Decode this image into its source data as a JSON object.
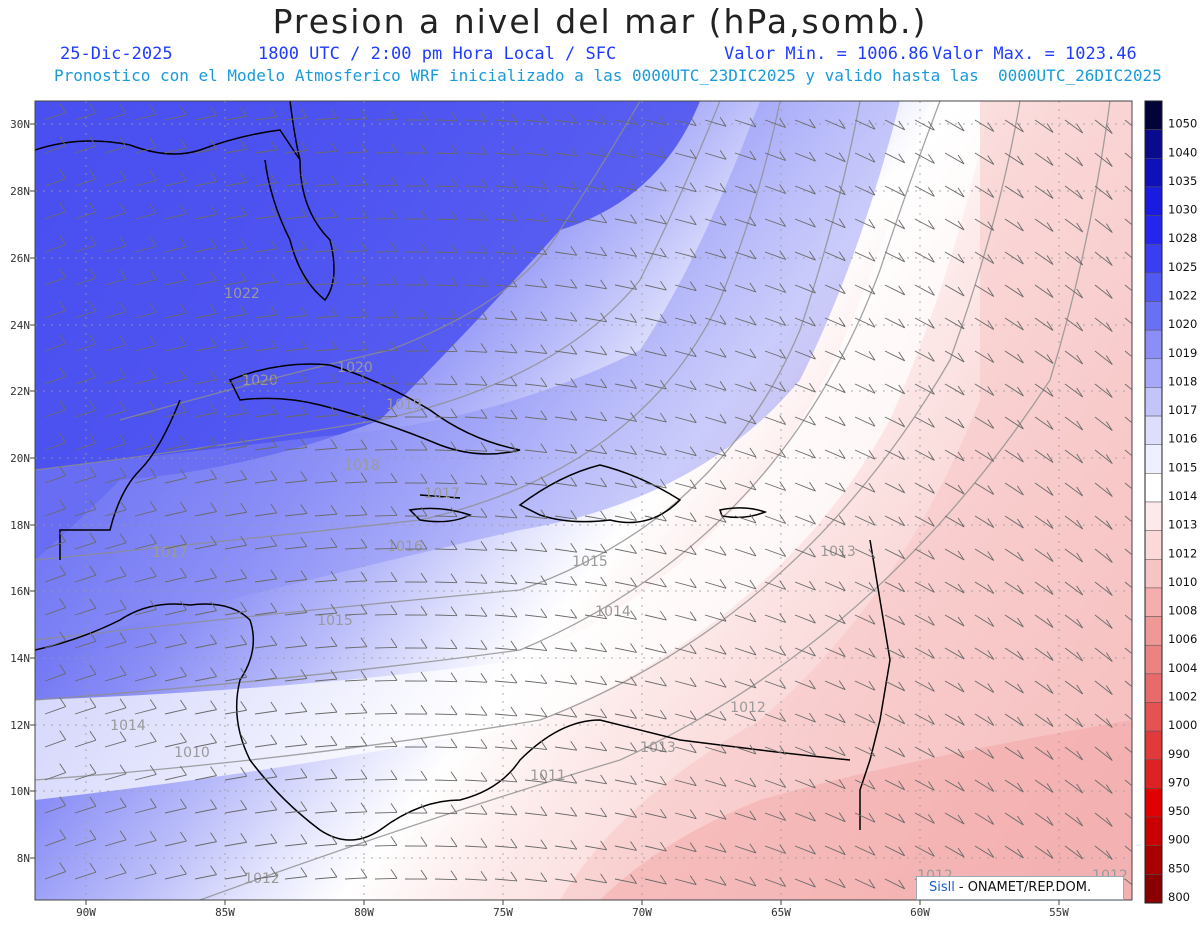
{
  "header": {
    "title": "Presion a nivel del mar (hPa,somb.)",
    "date": "25-Dic-2025",
    "time": "1800 UTC / 2:00 pm Hora Local / SFC",
    "min_label": "Valor Min. = 1006.86",
    "max_label": "Valor Max. = 1023.46",
    "model_info": "Pronostico con el Modelo Atmosferico WRF inicializado a las 0000UTC_23DIC2025 y valido hasta las  0000UTC_26DIC2025"
  },
  "map": {
    "lat_labels": [
      "30N",
      "28N",
      "26N",
      "24N",
      "22N",
      "20N",
      "18N",
      "16N",
      "14N",
      "12N",
      "10N",
      "8N"
    ],
    "lon_labels": [
      "90W",
      "85W",
      "80W",
      "75W",
      "70W",
      "65W",
      "60W",
      "55W"
    ],
    "contour_labels": [
      "1022",
      "1020",
      "1020",
      "1019",
      "1018",
      "1017",
      "1017",
      "1016",
      "1015",
      "1015",
      "1014",
      "1014",
      "1013",
      "1013",
      "1012",
      "1012",
      "1012",
      "1012",
      "1011",
      "1010"
    ]
  },
  "colorbar": {
    "levels": [
      "1050",
      "1040",
      "1035",
      "1030",
      "1028",
      "1025",
      "1022",
      "1020",
      "1019",
      "1018",
      "1017",
      "1016",
      "1015",
      "1014",
      "1013",
      "1012",
      "1010",
      "1008",
      "1006",
      "1004",
      "1002",
      "1000",
      "990",
      "970",
      "950",
      "900",
      "850",
      "800"
    ],
    "colors": [
      "#03033a",
      "#0a0a8c",
      "#1010b8",
      "#1a1ae0",
      "#2525f0",
      "#3a3ef0",
      "#5258f2",
      "#6a70f4",
      "#8a8ef6",
      "#a6a9f8",
      "#c2c4fa",
      "#dcdefc",
      "#eff0fe",
      "#ffffff",
      "#fde9e9",
      "#fbd9d9",
      "#f7c4c4",
      "#f4aeae",
      "#f09898",
      "#ec8282",
      "#e86a6a",
      "#e45252",
      "#e03a3a",
      "#dc2222",
      "#e00000",
      "#c80000",
      "#a80000",
      "#880000"
    ]
  },
  "credit": {
    "logo": "Sisll",
    "text": "- ONAMET/REP.DOM."
  }
}
